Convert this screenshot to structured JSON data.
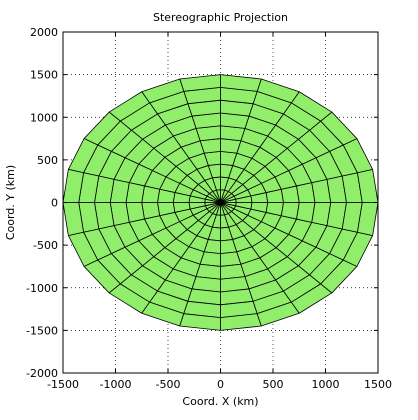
{
  "chart_data": {
    "type": "mesh",
    "title": "Stereographic Projection",
    "xlabel": "Coord. X (km)",
    "ylabel": "Coord.  Y (km)",
    "xlim": [
      -1500,
      1500
    ],
    "ylim": [
      -2000,
      2000
    ],
    "xticks": [
      -1500,
      -1000,
      -500,
      0,
      500,
      1000,
      1500
    ],
    "yticks": [
      -2000,
      -1500,
      -1000,
      -500,
      0,
      500,
      1000,
      1500,
      2000
    ],
    "grid": true,
    "face_color": "#90EE6A",
    "edge_color": "#000000",
    "mesh": {
      "center": [
        0,
        0
      ],
      "x_radius_km": 1500,
      "y_radius_km": 1500,
      "rings": 10,
      "spokes": 24
    }
  }
}
